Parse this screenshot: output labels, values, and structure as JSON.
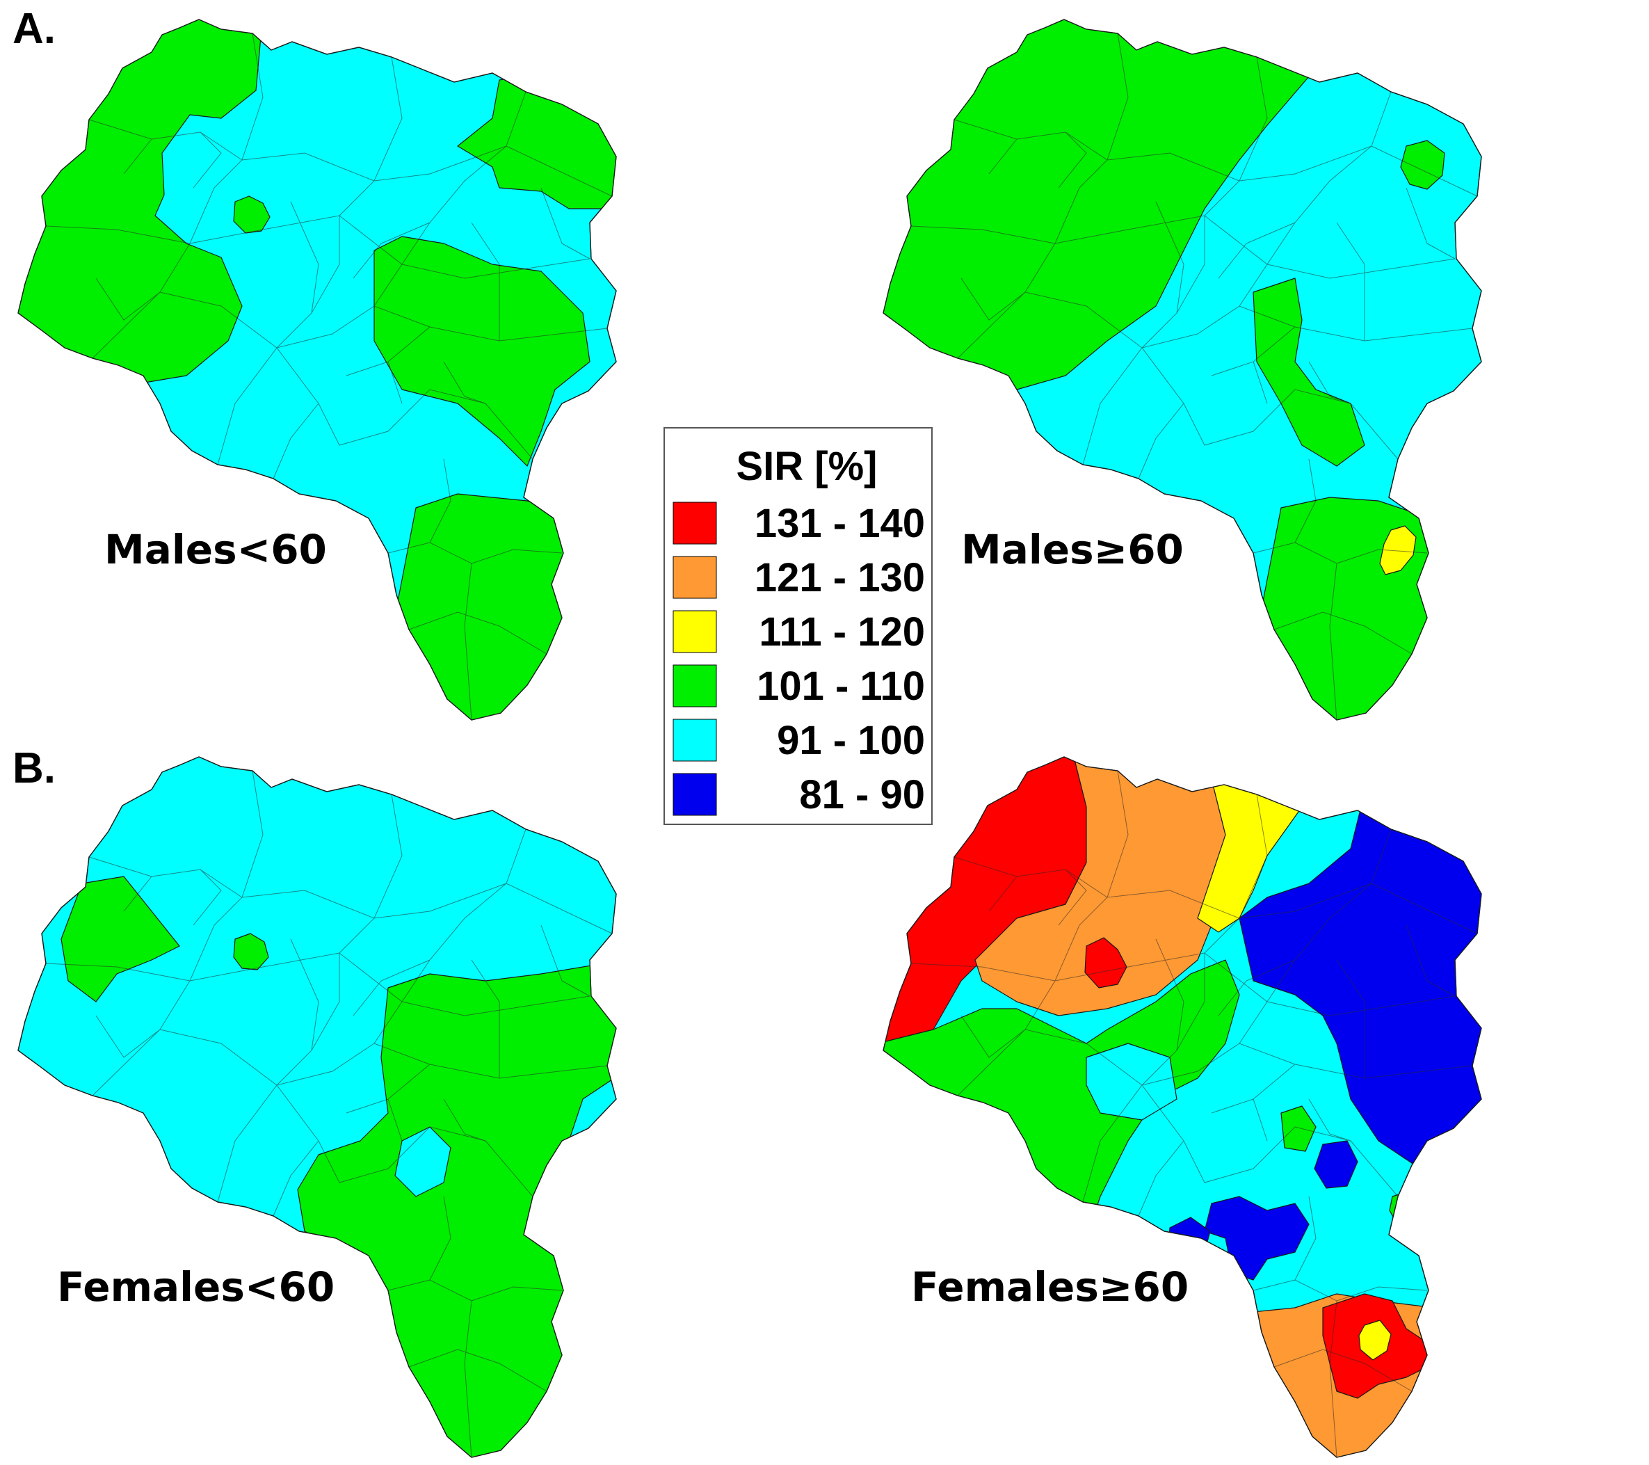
{
  "panels": [
    {
      "letter": "A."
    },
    {
      "letter": "B."
    }
  ],
  "maps": [
    {
      "label": "Males<60"
    },
    {
      "label": "Males≥60"
    },
    {
      "label": "Females<60"
    },
    {
      "label": "Females≥60"
    }
  ],
  "legend": {
    "title": "SIR [%]",
    "items": [
      {
        "label": "131 - 140",
        "color": "#ff0000"
      },
      {
        "label": "121 - 130",
        "color": "#ff9933"
      },
      {
        "label": "111 - 120",
        "color": "#ffff00"
      },
      {
        "label": "101 - 110",
        "color": "#00ee00"
      },
      {
        "label": "91 - 100",
        "color": "#00ffff"
      },
      {
        "label": "81 - 90",
        "color": "#0000ee"
      }
    ]
  }
}
